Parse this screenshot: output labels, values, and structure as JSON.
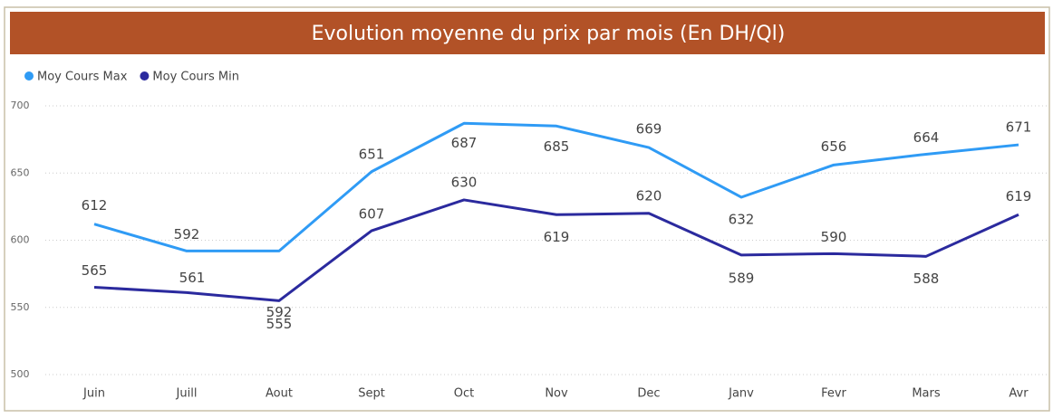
{
  "chart_data": {
    "type": "line",
    "title": "Evolution moyenne du prix par mois (En DH/Ql)",
    "categories": [
      "Juin",
      "Juill",
      "Aout",
      "Sept",
      "Oct",
      "Nov",
      "Dec",
      "Janv",
      "Fevr",
      "Mars",
      "Avr"
    ],
    "series": [
      {
        "name": "Moy Cours Max",
        "color": "#2f9bf5",
        "values": [
          612,
          592,
          592,
          651,
          687,
          685,
          669,
          632,
          656,
          664,
          671
        ]
      },
      {
        "name": "Moy Cours Min",
        "color": "#2b2a9e",
        "values": [
          565,
          561,
          555,
          607,
          630,
          619,
          620,
          589,
          590,
          588,
          619
        ]
      }
    ],
    "ylim": [
      500,
      700
    ],
    "yticks": [
      500,
      550,
      600,
      650,
      700
    ],
    "grid": true,
    "legend": "top-left"
  }
}
